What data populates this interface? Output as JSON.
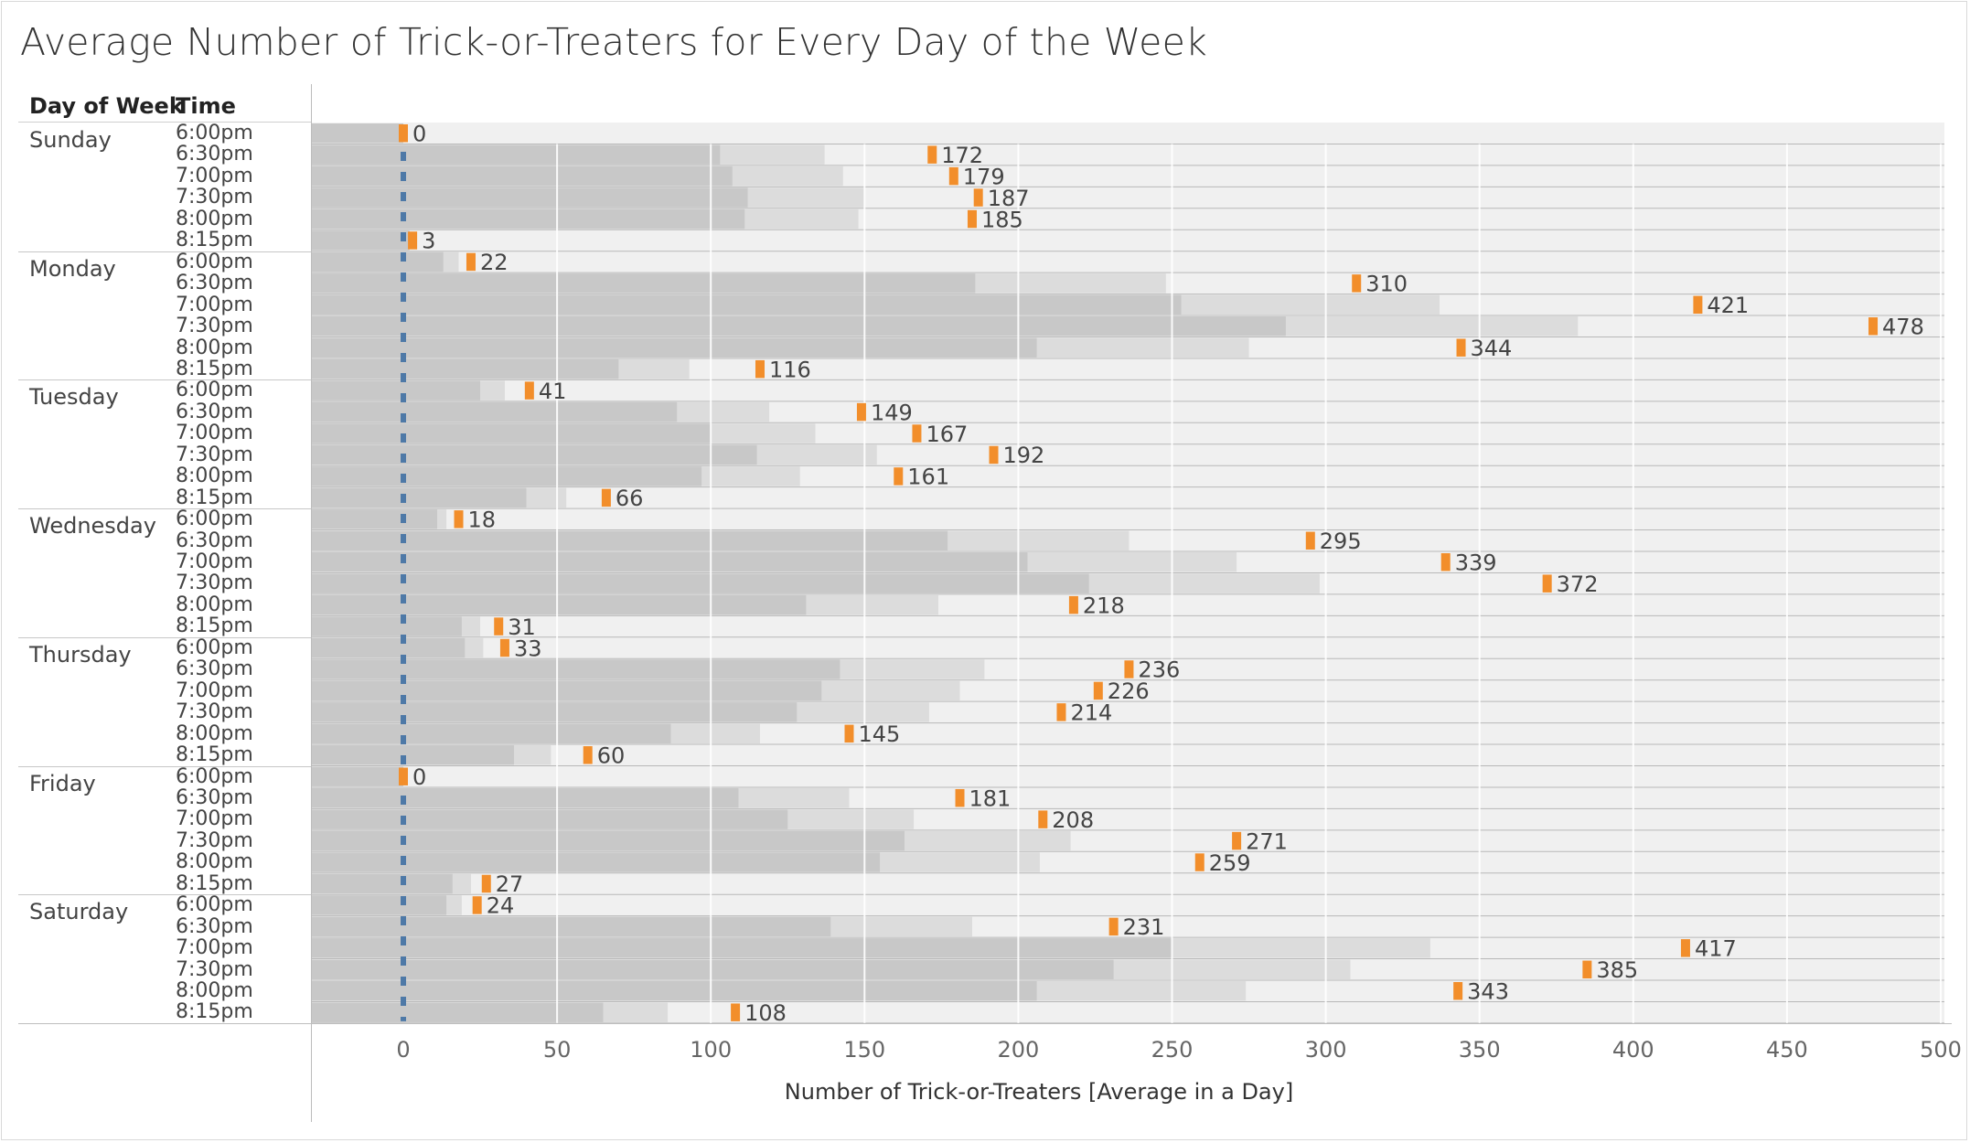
{
  "title": "Average Number of Trick-or-Treaters for Every Day of the Week",
  "headers": {
    "day": "Day of Week",
    "time": "Time"
  },
  "chart_data": {
    "type": "bar",
    "title": "Average Number of Trick-or-Treaters for Every Day of the Week",
    "xlabel": "Number of Trick-or-Treaters [Average in a Day]",
    "ylabel": "",
    "xlim": [
      -30,
      500
    ],
    "xticks": [
      0,
      50,
      100,
      150,
      200,
      250,
      300,
      350,
      400,
      450,
      500
    ],
    "grid": true,
    "reference_line": 0,
    "marker_color": "#F28E2B",
    "reference_line_color": "#4E79A7",
    "band_colors": [
      "#C8C8C8",
      "#DCDCDC",
      "#F0F0F0"
    ],
    "groups": [
      {
        "day": "Sunday",
        "rows": [
          {
            "time": "6:00pm",
            "value": 0,
            "bands": [
              0,
              0
            ]
          },
          {
            "time": "6:30pm",
            "value": 172,
            "bands": [
              103,
              137
            ]
          },
          {
            "time": "7:00pm",
            "value": 179,
            "bands": [
              107,
              143
            ]
          },
          {
            "time": "7:30pm",
            "value": 187,
            "bands": [
              112,
              150
            ]
          },
          {
            "time": "8:00pm",
            "value": 185,
            "bands": [
              111,
              148
            ]
          },
          {
            "time": "8:15pm",
            "value": 3,
            "bands": [
              2,
              2
            ]
          }
        ]
      },
      {
        "day": "Monday",
        "rows": [
          {
            "time": "6:00pm",
            "value": 22,
            "bands": [
              13,
              18
            ]
          },
          {
            "time": "6:30pm",
            "value": 310,
            "bands": [
              186,
              248
            ]
          },
          {
            "time": "7:00pm",
            "value": 421,
            "bands": [
              253,
              337
            ]
          },
          {
            "time": "7:30pm",
            "value": 478,
            "bands": [
              287,
              382
            ]
          },
          {
            "time": "8:00pm",
            "value": 344,
            "bands": [
              206,
              275
            ]
          },
          {
            "time": "8:15pm",
            "value": 116,
            "bands": [
              70,
              93
            ]
          }
        ]
      },
      {
        "day": "Tuesday",
        "rows": [
          {
            "time": "6:00pm",
            "value": 41,
            "bands": [
              25,
              33
            ]
          },
          {
            "time": "6:30pm",
            "value": 149,
            "bands": [
              89,
              119
            ]
          },
          {
            "time": "7:00pm",
            "value": 167,
            "bands": [
              100,
              134
            ]
          },
          {
            "time": "7:30pm",
            "value": 192,
            "bands": [
              115,
              154
            ]
          },
          {
            "time": "8:00pm",
            "value": 161,
            "bands": [
              97,
              129
            ]
          },
          {
            "time": "8:15pm",
            "value": 66,
            "bands": [
              40,
              53
            ]
          }
        ]
      },
      {
        "day": "Wednesday",
        "rows": [
          {
            "time": "6:00pm",
            "value": 18,
            "bands": [
              11,
              14
            ]
          },
          {
            "time": "6:30pm",
            "value": 295,
            "bands": [
              177,
              236
            ]
          },
          {
            "time": "7:00pm",
            "value": 339,
            "bands": [
              203,
              271
            ]
          },
          {
            "time": "7:30pm",
            "value": 372,
            "bands": [
              223,
              298
            ]
          },
          {
            "time": "8:00pm",
            "value": 218,
            "bands": [
              131,
              174
            ]
          },
          {
            "time": "8:15pm",
            "value": 31,
            "bands": [
              19,
              25
            ]
          }
        ]
      },
      {
        "day": "Thursday",
        "rows": [
          {
            "time": "6:00pm",
            "value": 33,
            "bands": [
              20,
              26
            ]
          },
          {
            "time": "6:30pm",
            "value": 236,
            "bands": [
              142,
              189
            ]
          },
          {
            "time": "7:00pm",
            "value": 226,
            "bands": [
              136,
              181
            ]
          },
          {
            "time": "7:30pm",
            "value": 214,
            "bands": [
              128,
              171
            ]
          },
          {
            "time": "8:00pm",
            "value": 145,
            "bands": [
              87,
              116
            ]
          },
          {
            "time": "8:15pm",
            "value": 60,
            "bands": [
              36,
              48
            ]
          }
        ]
      },
      {
        "day": "Friday",
        "rows": [
          {
            "time": "6:00pm",
            "value": 0,
            "bands": [
              0,
              0
            ]
          },
          {
            "time": "6:30pm",
            "value": 181,
            "bands": [
              109,
              145
            ]
          },
          {
            "time": "7:00pm",
            "value": 208,
            "bands": [
              125,
              166
            ]
          },
          {
            "time": "7:30pm",
            "value": 271,
            "bands": [
              163,
              217
            ]
          },
          {
            "time": "8:00pm",
            "value": 259,
            "bands": [
              155,
              207
            ]
          },
          {
            "time": "8:15pm",
            "value": 27,
            "bands": [
              16,
              22
            ]
          }
        ]
      },
      {
        "day": "Saturday",
        "rows": [
          {
            "time": "6:00pm",
            "value": 24,
            "bands": [
              14,
              19
            ]
          },
          {
            "time": "6:30pm",
            "value": 231,
            "bands": [
              139,
              185
            ]
          },
          {
            "time": "7:00pm",
            "value": 417,
            "bands": [
              250,
              334
            ]
          },
          {
            "time": "7:30pm",
            "value": 385,
            "bands": [
              231,
              308
            ]
          },
          {
            "time": "8:00pm",
            "value": 343,
            "bands": [
              206,
              274
            ]
          },
          {
            "time": "8:15pm",
            "value": 108,
            "bands": [
              65,
              86
            ]
          }
        ]
      }
    ]
  }
}
